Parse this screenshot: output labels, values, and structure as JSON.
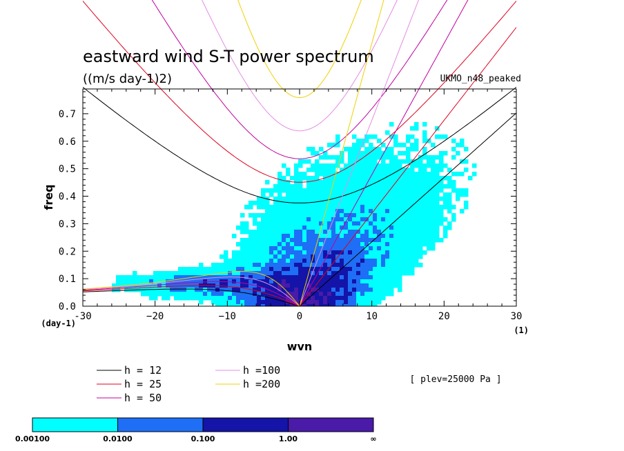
{
  "chart_data": {
    "type": "heatmap",
    "title": "eastward wind S-T power spectrum",
    "subtitle": "((m/s day-1)2)",
    "model_label": "UKMO_n48_peaked",
    "level_label": "[ plev=25000 Pa ]",
    "xlabel": "wvn",
    "ylabel": "freq",
    "x_unit": "(1)",
    "y_unit": "(day-1)",
    "xlim": [
      -30,
      30
    ],
    "ylim": [
      0,
      0.79
    ],
    "xticks": [
      -30,
      -20,
      -10,
      0,
      10,
      20,
      30
    ],
    "xtick_labels": [
      "-30",
      "−20",
      "−10",
      "0",
      "10",
      "20",
      "30"
    ],
    "yticks": [
      0,
      0.1,
      0.2,
      0.3,
      0.4,
      0.5,
      0.6,
      0.7
    ],
    "ytick_labels": [
      "0.0",
      "0.1",
      "0.2",
      "0.3",
      "0.4",
      "0.5",
      "0.6",
      "0.7"
    ],
    "dispersion_curves": [
      {
        "name": "h = 12",
        "h": 12,
        "color": "#000000"
      },
      {
        "name": "h = 25",
        "h": 25,
        "color": "#e0001e"
      },
      {
        "name": "h = 50",
        "h": 50,
        "color": "#c000a0"
      },
      {
        "name": "h =100",
        "h": 100,
        "color": "#e38ce3"
      },
      {
        "name": "h =200",
        "h": 200,
        "color": "#f0d000"
      }
    ],
    "colorbar": {
      "levels": [
        "0.00100",
        "0.0100",
        "0.100",
        "1.00",
        "∞"
      ],
      "colors": [
        "#00ffff",
        "#1e6ff5",
        "#1414a8",
        "#4a1aa8"
      ]
    }
  }
}
